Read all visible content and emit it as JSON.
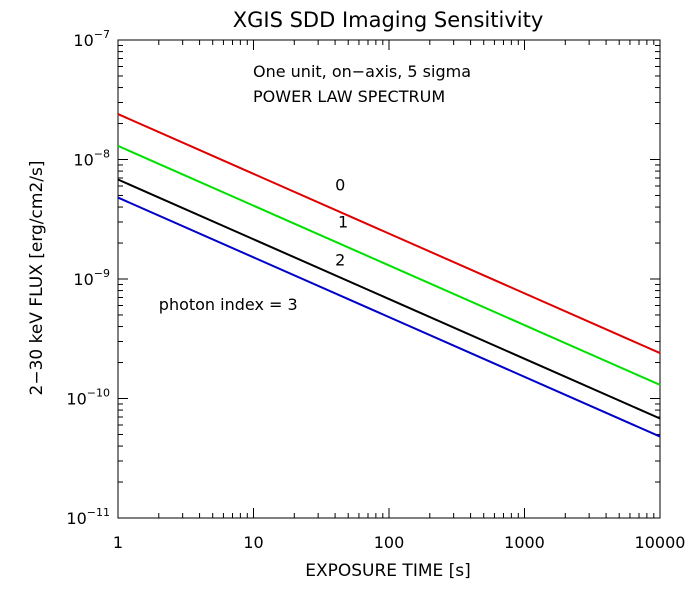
{
  "chart_data": {
    "type": "line",
    "title": "XGIS SDD Imaging Sensitivity",
    "xlabel": "EXPOSURE TIME [s]",
    "ylabel": "2−30 keV FLUX [erg/cm2/s]",
    "xscale": "log",
    "yscale": "log",
    "xlim": [
      1,
      10000
    ],
    "ylim": [
      1e-11,
      1e-07
    ],
    "x_ticks": [
      {
        "value": 1,
        "label": "1"
      },
      {
        "value": 10,
        "label": "10"
      },
      {
        "value": 100,
        "label": "100"
      },
      {
        "value": 1000,
        "label": "1000"
      },
      {
        "value": 10000,
        "label": "10000"
      }
    ],
    "y_ticks": [
      {
        "value": 1e-07,
        "mantissa": "10",
        "exponent": "−7"
      },
      {
        "value": 1e-08,
        "mantissa": "10",
        "exponent": "−8"
      },
      {
        "value": 1e-09,
        "mantissa": "10",
        "exponent": "−9"
      },
      {
        "value": 1e-10,
        "mantissa": "10",
        "exponent": "−10"
      },
      {
        "value": 1e-11,
        "mantissa": "10",
        "exponent": "−11"
      }
    ],
    "annotations": {
      "line1": "One unit, on−axis, 5 sigma",
      "line2": "POWER LAW SPECTRUM"
    },
    "series": [
      {
        "name": "photon index 0",
        "label": "0",
        "color": "#e00000",
        "x": [
          1,
          10000
        ],
        "y": [
          2.4e-08,
          2.4e-10
        ],
        "label_at": [
          40,
          5.5e-09
        ]
      },
      {
        "name": "photon index 1",
        "label": "1",
        "color": "#00e000",
        "x": [
          1,
          10000
        ],
        "y": [
          1.3e-08,
          1.3e-10
        ],
        "label_at": [
          42,
          2.7e-09
        ]
      },
      {
        "name": "photon index 2",
        "label": "2",
        "color": "#000000",
        "x": [
          1,
          10000
        ],
        "y": [
          6.8e-09,
          6.8e-11
        ],
        "label_at": [
          40,
          1.3e-09
        ]
      },
      {
        "name": "photon index 3",
        "label": "photon index = 3",
        "color": "#0000c8",
        "x": [
          1,
          10000
        ],
        "y": [
          4.8e-09,
          4.8e-11
        ],
        "label_at": [
          2,
          5.5e-10
        ]
      }
    ]
  }
}
